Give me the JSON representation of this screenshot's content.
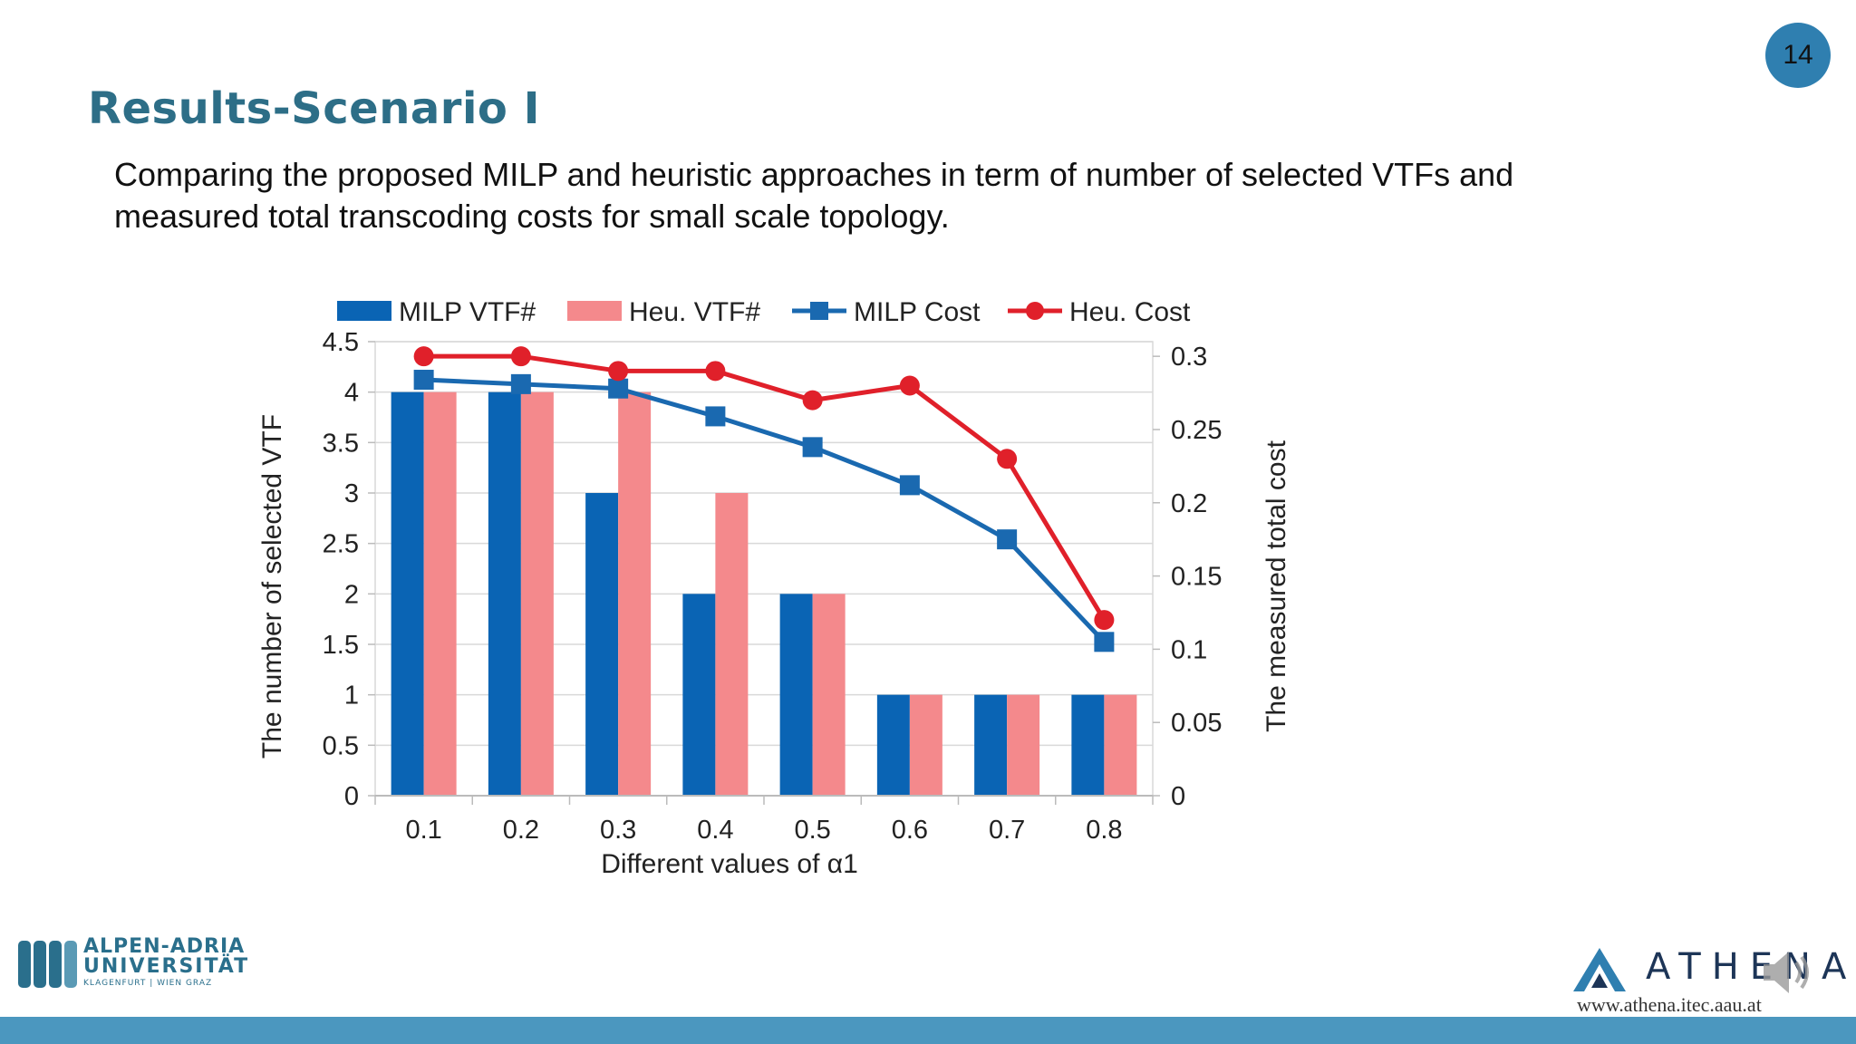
{
  "slide": {
    "page_number": "14",
    "title": "Results-Scenario I",
    "description_lines": [
      "Comparing the proposed MILP and heuristic approaches in term of number of selected VTFs and",
      "measured total transcoding costs for small scale topology."
    ]
  },
  "chart_data": {
    "type": "bar",
    "categories": [
      "0.1",
      "0.2",
      "0.3",
      "0.4",
      "0.5",
      "0.6",
      "0.7",
      "0.8"
    ],
    "series": [
      {
        "name": "MILP VTF#",
        "kind": "bar",
        "axis": "left",
        "color": "#0a64b4",
        "values": [
          4,
          4,
          3,
          2,
          2,
          1,
          1,
          1
        ]
      },
      {
        "name": "Heu. VTF#",
        "kind": "bar",
        "axis": "left",
        "color": "#f4898c",
        "values": [
          4,
          4,
          4,
          3,
          2,
          1,
          1,
          1
        ]
      },
      {
        "name": "MILP Cost",
        "kind": "line",
        "marker": "square",
        "axis": "right",
        "color": "#1a69b0",
        "values": [
          0.284,
          0.281,
          0.278,
          0.259,
          0.238,
          0.212,
          0.175,
          0.105
        ]
      },
      {
        "name": "Heu. Cost",
        "kind": "line",
        "marker": "circle",
        "axis": "right",
        "color": "#e0202a",
        "values": [
          0.3,
          0.3,
          0.29,
          0.29,
          0.27,
          0.28,
          0.23,
          0.12
        ]
      }
    ],
    "xlabel": "Different values of  α1",
    "ylabel": "The number of selected VTF",
    "y2label": "The measured total cost",
    "ylim": [
      0,
      4.5
    ],
    "y2lim": [
      0,
      0.31
    ],
    "yticks": [
      "0",
      "0.5",
      "1",
      "1.5",
      "2",
      "2.5",
      "3",
      "3.5",
      "4",
      "4.5"
    ],
    "y2ticks": [
      "0",
      "0.05",
      "0.1",
      "0.15",
      "0.2",
      "0.25",
      "0.3"
    ],
    "grid": true,
    "legend_position": "top"
  },
  "footer": {
    "left_logo": {
      "line1": "ALPEN-ADRIA",
      "line2": "UNIVERSITÄT",
      "line3": "KLAGENFURT | WIEN GRAZ"
    },
    "right_logo": {
      "name": "ATHENA",
      "url": "www.athena.itec.aau.at"
    },
    "icons": [
      "speaker-icon"
    ]
  }
}
